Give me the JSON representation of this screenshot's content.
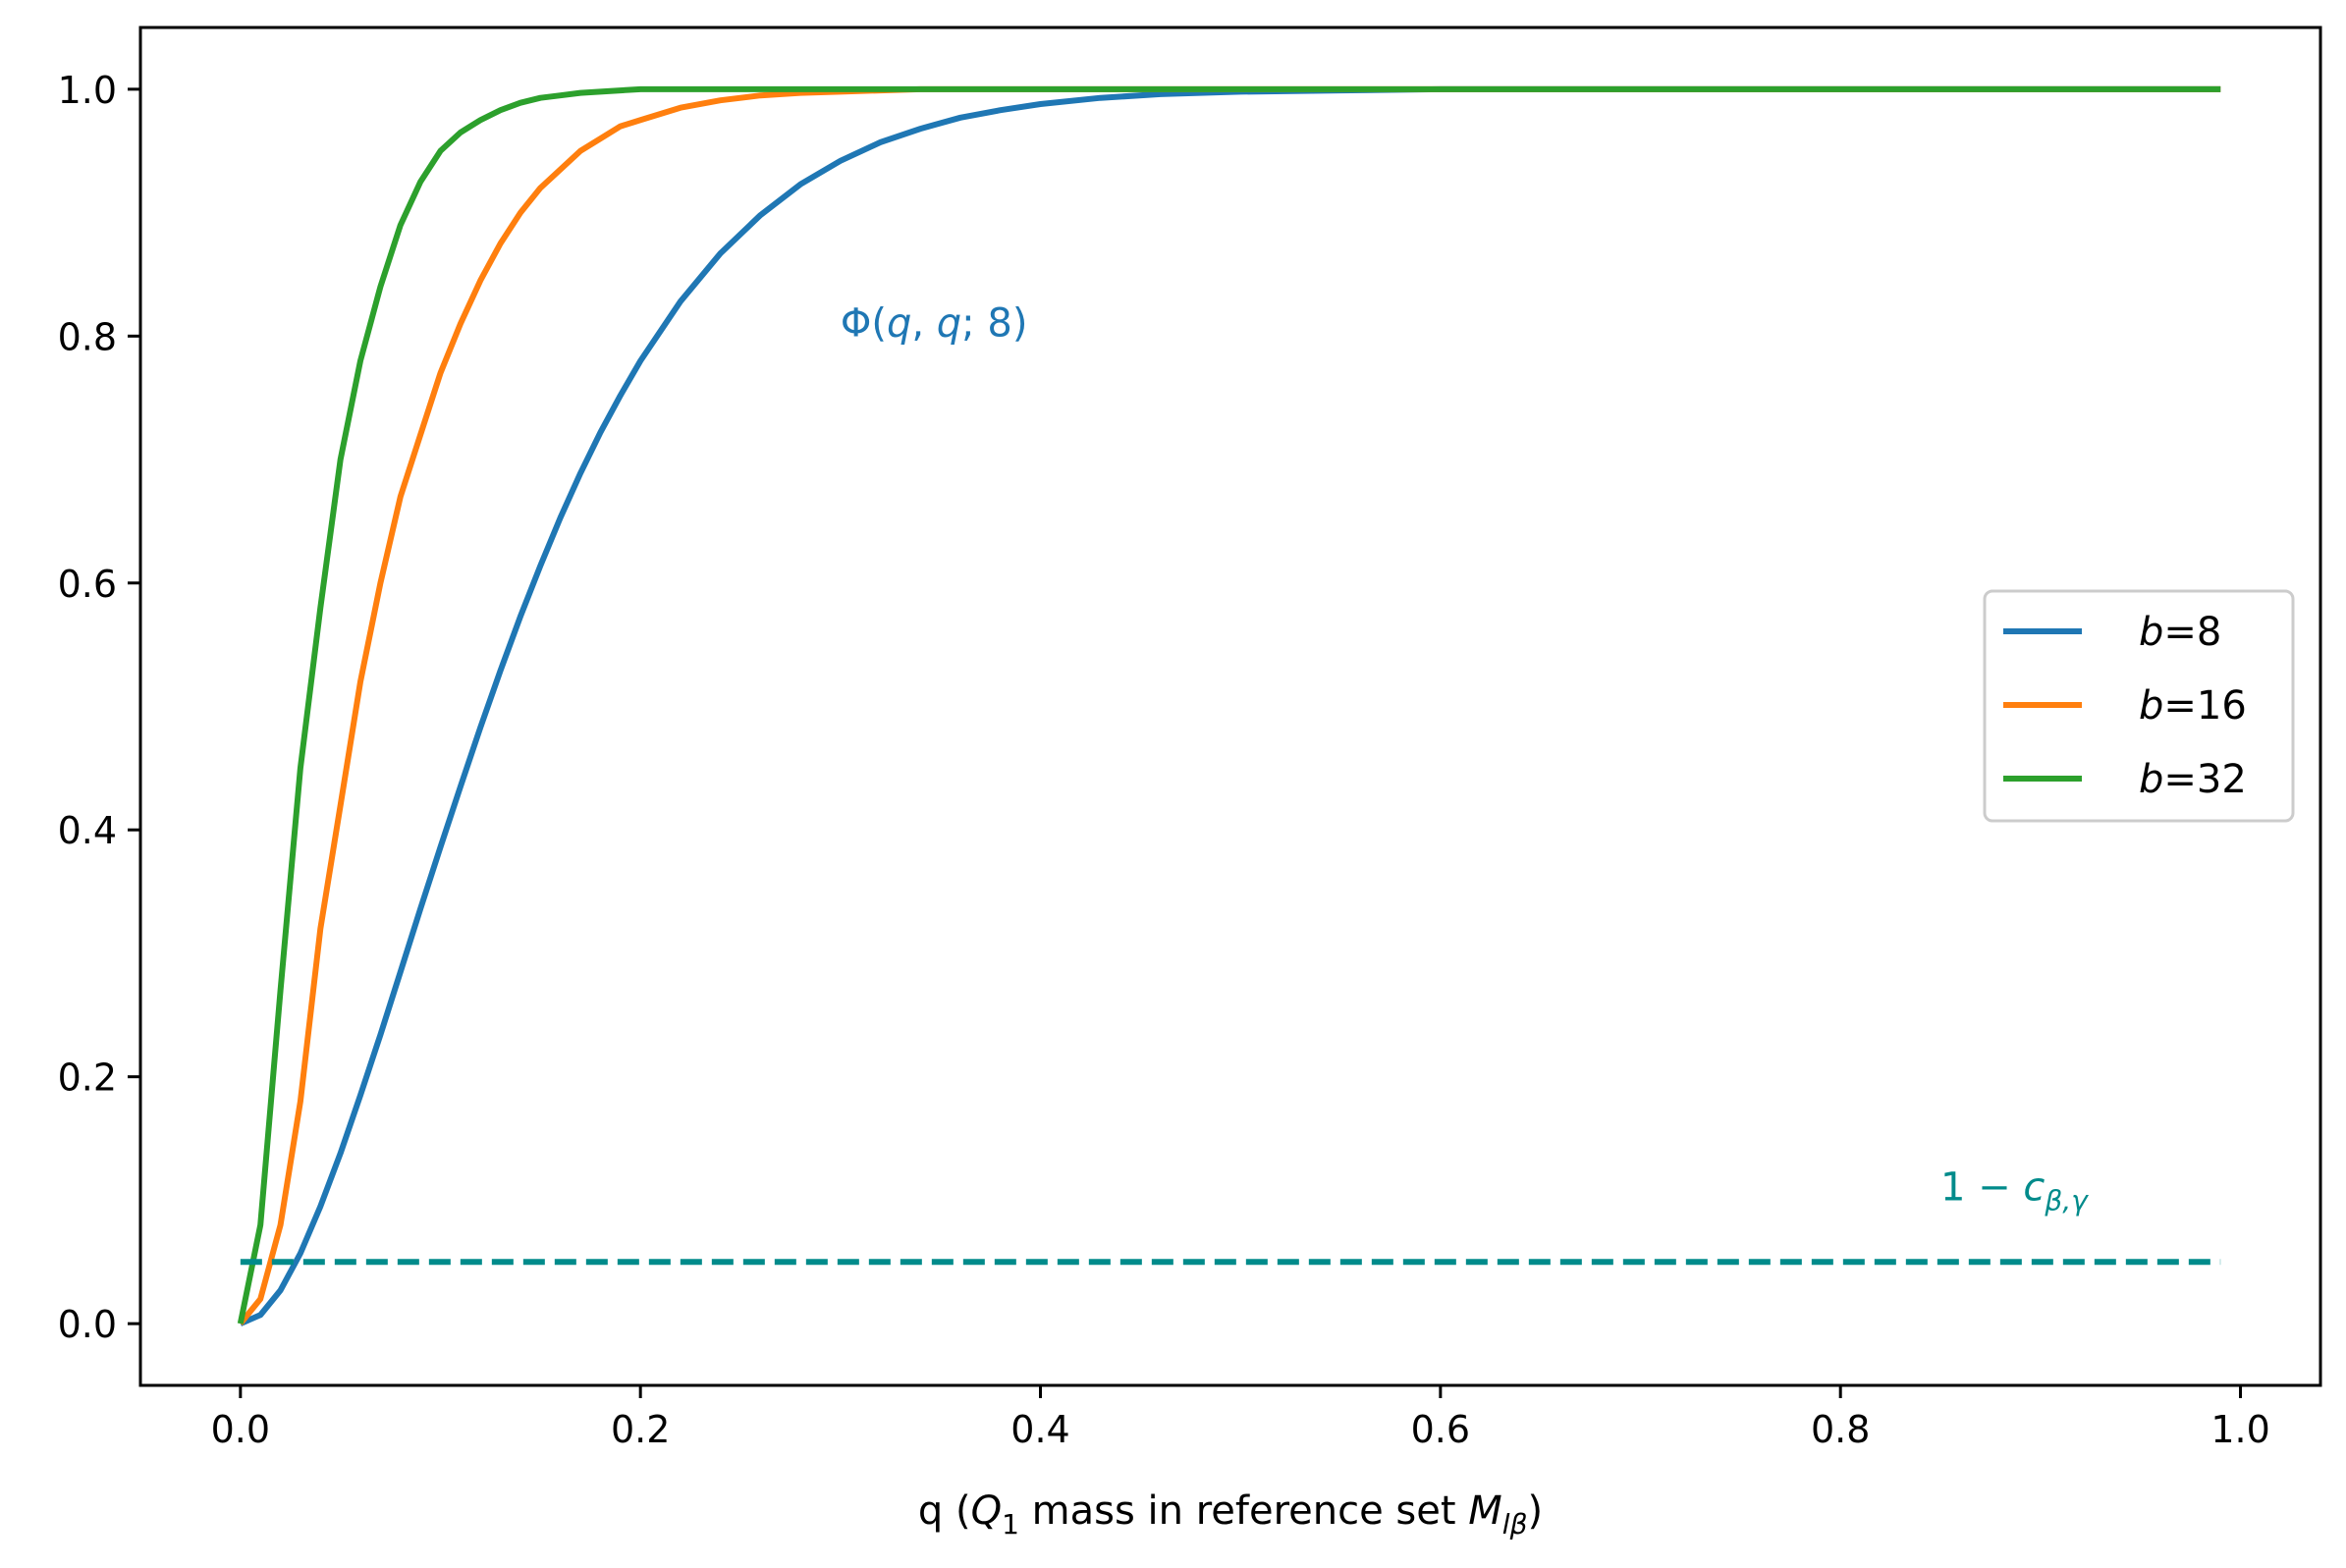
{
  "chart_data": {
    "type": "line",
    "title": "",
    "xlabel": "q (Q₁ mass in reference set Mₗᵦ)",
    "xlabel_parts": {
      "prefix": "q (",
      "q_symbol": "Q",
      "q_sub": "1",
      "middle": " mass in reference set ",
      "m_symbol": "M",
      "m_sub": "lβ",
      "suffix": ")"
    },
    "ylabel": "",
    "xlim": [
      -0.05,
      1.04
    ],
    "ylim": [
      -0.05,
      1.05
    ],
    "xticks": [
      0.0,
      0.2,
      0.4,
      0.6,
      0.8,
      1.0
    ],
    "xtick_labels": [
      "0.0",
      "0.2",
      "0.4",
      "0.6",
      "0.8",
      "1.0"
    ],
    "yticks": [
      0.0,
      0.2,
      0.4,
      0.6,
      0.8,
      1.0
    ],
    "ytick_labels": [
      "0.0",
      "0.2",
      "0.4",
      "0.6",
      "0.8",
      "1.0"
    ],
    "grid": false,
    "legend_position": "center-right",
    "x": [
      0.0,
      0.01,
      0.02,
      0.03,
      0.04,
      0.05,
      0.06,
      0.07,
      0.08,
      0.09,
      0.1,
      0.11,
      0.12,
      0.13,
      0.14,
      0.15,
      0.16,
      0.17,
      0.18,
      0.19,
      0.2,
      0.22,
      0.24,
      0.26,
      0.28,
      0.3,
      0.32,
      0.34,
      0.36,
      0.38,
      0.4,
      0.43,
      0.46,
      0.5,
      0.55,
      0.6,
      0.7,
      0.8,
      0.9,
      0.99
    ],
    "series": [
      {
        "name": "b=8",
        "label_var": "b",
        "label_value": "8",
        "color": "#1f77b4",
        "values": [
          0.0,
          0.007,
          0.027,
          0.057,
          0.095,
          0.138,
          0.185,
          0.234,
          0.285,
          0.336,
          0.386,
          0.435,
          0.483,
          0.529,
          0.573,
          0.614,
          0.653,
          0.689,
          0.722,
          0.752,
          0.78,
          0.828,
          0.867,
          0.898,
          0.923,
          0.942,
          0.957,
          0.968,
          0.977,
          0.983,
          0.988,
          0.993,
          0.996,
          0.998,
          0.999,
          1.0,
          1.0,
          1.0,
          1.0,
          1.0
        ]
      },
      {
        "name": "b=16",
        "label_var": "b",
        "label_value": "16",
        "color": "#ff7f0e",
        "values": [
          0.0,
          0.02,
          0.08,
          0.18,
          0.32,
          0.42,
          0.52,
          0.6,
          0.67,
          0.72,
          0.77,
          0.81,
          0.845,
          0.875,
          0.9,
          0.92,
          0.935,
          0.95,
          0.96,
          0.97,
          0.975,
          0.985,
          0.991,
          0.995,
          0.997,
          0.998,
          0.999,
          1.0,
          1.0,
          1.0,
          1.0,
          1.0,
          1.0,
          1.0,
          1.0,
          1.0,
          1.0,
          1.0,
          1.0,
          1.0
        ]
      },
      {
        "name": "b=32",
        "label_var": "b",
        "label_value": "32",
        "color": "#2ca02c",
        "values": [
          0.0,
          0.08,
          0.27,
          0.45,
          0.58,
          0.7,
          0.78,
          0.84,
          0.89,
          0.925,
          0.95,
          0.965,
          0.975,
          0.983,
          0.989,
          0.993,
          0.995,
          0.997,
          0.998,
          0.999,
          1.0,
          1.0,
          1.0,
          1.0,
          1.0,
          1.0,
          1.0,
          1.0,
          1.0,
          1.0,
          1.0,
          1.0,
          1.0,
          1.0,
          1.0,
          1.0,
          1.0,
          1.0,
          1.0,
          1.0
        ]
      }
    ],
    "threshold": {
      "y": 0.05,
      "x_range": [
        0.0,
        0.99
      ],
      "style": "dashed",
      "color": "#008b8b",
      "label": "1 − cβ,γ",
      "label_parts": {
        "prefix": "1 − ",
        "symbol": "c",
        "sub": "β,γ"
      },
      "label_anchor": [
        0.85,
        0.1
      ]
    },
    "annotations": [
      {
        "text": "Φ(q, q; 8)",
        "parts": {
          "func": "Φ(",
          "a": "q",
          "sep1": ", ",
          "b": "q",
          "sep2": "; ",
          "c": "8",
          "close": ")"
        },
        "x": 0.3,
        "y": 0.8,
        "color": "#1f77b4"
      }
    ]
  }
}
